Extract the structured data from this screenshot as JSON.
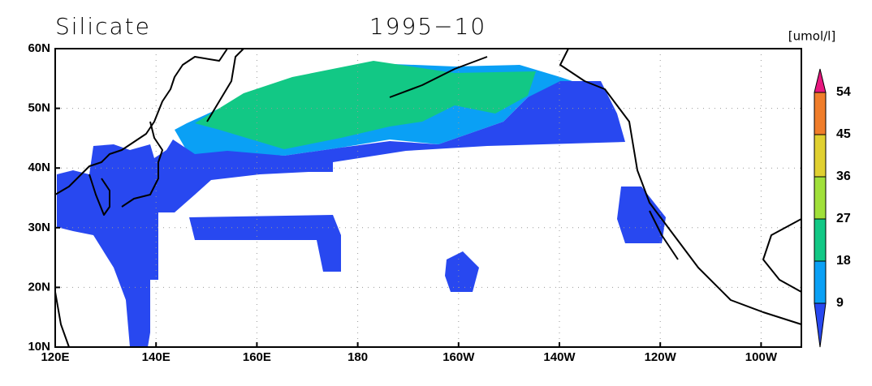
{
  "title": "Silicate",
  "date": "1995−10",
  "colorbar": {
    "unit": "[umol/l]",
    "levels": [
      9,
      18,
      27,
      36,
      45,
      54
    ],
    "colors": [
      "#2848f0",
      "#0aa0f5",
      "#12c885",
      "#a0e03a",
      "#e0d030",
      "#f07d2a",
      "#e8177f"
    ]
  },
  "axes": {
    "lat_labels": [
      "60N",
      "50N",
      "40N",
      "30N",
      "20N",
      "10N"
    ],
    "lon_labels": [
      "120E",
      "140E",
      "160E",
      "180",
      "160W",
      "140W",
      "120W",
      "100W"
    ]
  }
}
